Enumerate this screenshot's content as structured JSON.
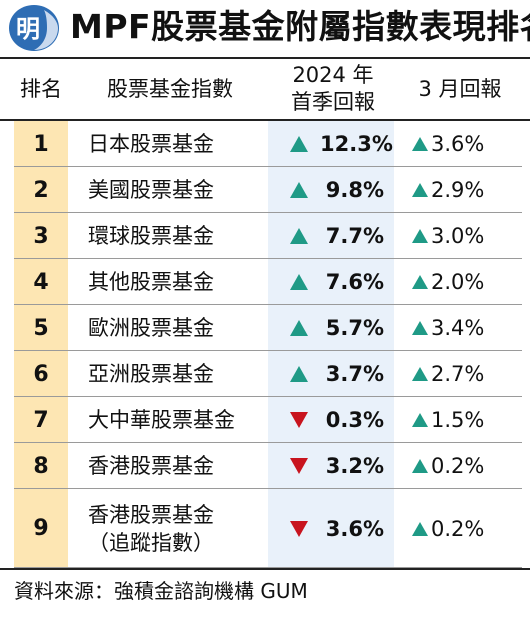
{
  "header": {
    "logo_char": "明",
    "title": "MPF股票基金附屬指數表現排名"
  },
  "columns": {
    "rank": "排名",
    "name": "股票基金指數",
    "q1_line1": "2024 年",
    "q1_line2": "首季回報",
    "march": "3 月回報"
  },
  "colors": {
    "up": "#1f9a86",
    "down": "#c8141e",
    "rank_bg": "#fde6b3",
    "q1_bg": "#e9f1fa",
    "logo_blue": "#2e6db4"
  },
  "rows": [
    {
      "rank": "1",
      "name": "日本股票基金",
      "name2": "",
      "q1_dir": "up",
      "q1": "12.3%",
      "mar_dir": "up",
      "mar": "3.6%"
    },
    {
      "rank": "2",
      "name": "美國股票基金",
      "name2": "",
      "q1_dir": "up",
      "q1": "9.8%",
      "mar_dir": "up",
      "mar": "2.9%"
    },
    {
      "rank": "3",
      "name": "環球股票基金",
      "name2": "",
      "q1_dir": "up",
      "q1": "7.7%",
      "mar_dir": "up",
      "mar": "3.0%"
    },
    {
      "rank": "4",
      "name": "其他股票基金",
      "name2": "",
      "q1_dir": "up",
      "q1": "7.6%",
      "mar_dir": "up",
      "mar": "2.0%"
    },
    {
      "rank": "5",
      "name": "歐洲股票基金",
      "name2": "",
      "q1_dir": "up",
      "q1": "5.7%",
      "mar_dir": "up",
      "mar": "3.4%"
    },
    {
      "rank": "6",
      "name": "亞洲股票基金",
      "name2": "",
      "q1_dir": "up",
      "q1": "3.7%",
      "mar_dir": "up",
      "mar": "2.7%"
    },
    {
      "rank": "7",
      "name": "大中華股票基金",
      "name2": "",
      "q1_dir": "down",
      "q1": "0.3%",
      "mar_dir": "up",
      "mar": "1.5%"
    },
    {
      "rank": "8",
      "name": "香港股票基金",
      "name2": "",
      "q1_dir": "down",
      "q1": "3.2%",
      "mar_dir": "up",
      "mar": "0.2%"
    },
    {
      "rank": "9",
      "name": "香港股票基金",
      "name2": "（追蹤指數）",
      "q1_dir": "down",
      "q1": "3.6%",
      "mar_dir": "up",
      "mar": "0.2%"
    }
  ],
  "footer": {
    "source": "資料來源：強積金諮詢機構 GUM"
  }
}
